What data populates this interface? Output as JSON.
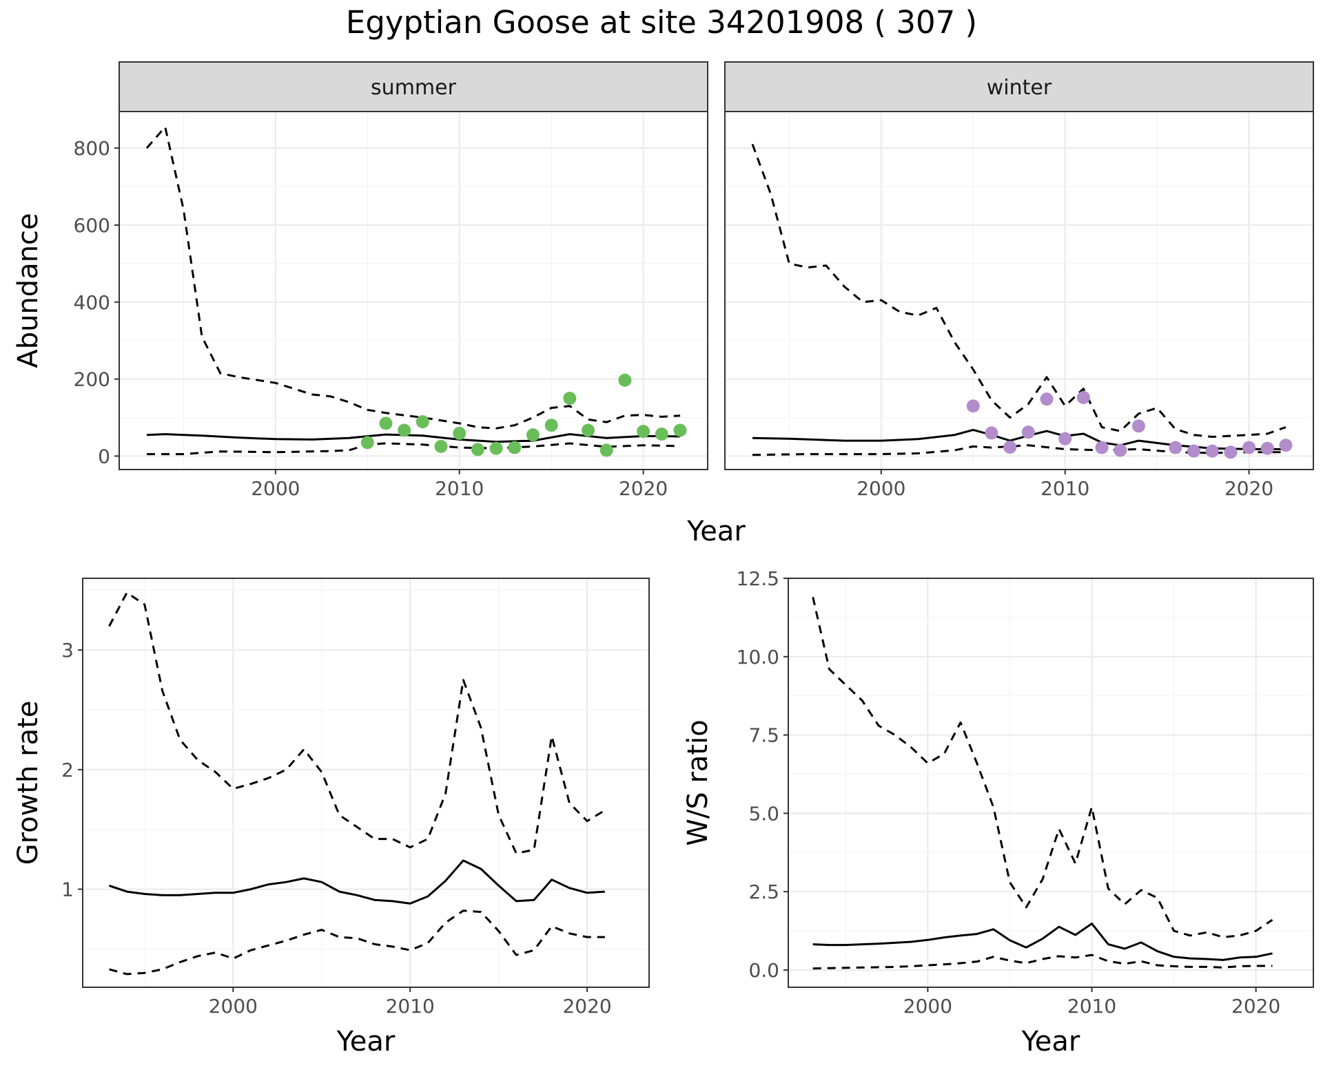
{
  "title": "Egyptian Goose at site 34201908 ( 307 )",
  "colors": {
    "summer_points": "#6ABE5A",
    "winter_points": "#B28CCB",
    "lines": "#000000",
    "strip_fill": "#D9D9D9",
    "grid_major": "#EBEBEB",
    "grid_minor": "#F4F4F4"
  },
  "chart_data": [
    {
      "type": "scatter",
      "panel": "summer",
      "strip_label": "summer",
      "xlabel": "Year",
      "ylabel": "Abundance",
      "xlim": [
        1991.5,
        2023.5
      ],
      "ylim": [
        -35,
        895
      ],
      "x_ticks": [
        2000,
        2010,
        2020
      ],
      "y_ticks": [
        0,
        200,
        400,
        600,
        800
      ],
      "points": {
        "x": [
          2005,
          2006,
          2007,
          2008,
          2009,
          2010,
          2011,
          2012,
          2013,
          2014,
          2015,
          2016,
          2017,
          2018,
          2019,
          2020,
          2021,
          2022
        ],
        "y": [
          35,
          85,
          67,
          89,
          25,
          59,
          17,
          20,
          22,
          55,
          80,
          150,
          67,
          15,
          197,
          64,
          57,
          67
        ]
      },
      "series": [
        {
          "style": "solid",
          "x": [
            1993,
            1994,
            1996,
            1998,
            2000,
            2002,
            2004,
            2006,
            2008,
            2010,
            2012,
            2014,
            2016,
            2018,
            2020,
            2022
          ],
          "y": [
            55,
            57,
            53,
            48,
            44,
            43,
            47,
            56,
            53,
            43,
            37,
            40,
            57,
            47,
            52,
            51
          ]
        },
        {
          "style": "dashed",
          "x": [
            1993,
            1994,
            1995,
            1996,
            1997,
            1998,
            2000,
            2002,
            2003,
            2004,
            2005,
            2006,
            2008,
            2010,
            2011,
            2012,
            2013,
            2014,
            2015,
            2016,
            2017,
            2018,
            2019,
            2020,
            2021,
            2022
          ],
          "y": [
            800,
            855,
            640,
            310,
            215,
            205,
            190,
            160,
            155,
            140,
            120,
            112,
            100,
            85,
            75,
            72,
            80,
            100,
            125,
            130,
            95,
            88,
            105,
            107,
            102,
            105
          ]
        },
        {
          "style": "dashed",
          "x": [
            1993,
            1995,
            1997,
            2000,
            2003,
            2004,
            2005,
            2006,
            2008,
            2010,
            2012,
            2014,
            2016,
            2018,
            2020,
            2022
          ],
          "y": [
            5,
            5,
            12,
            10,
            13,
            15,
            30,
            33,
            30,
            22,
            20,
            25,
            33,
            24,
            28,
            26
          ]
        }
      ]
    },
    {
      "type": "scatter",
      "panel": "winter",
      "strip_label": "winter",
      "xlabel": "Year",
      "xlim": [
        1991.5,
        2023.5
      ],
      "ylim": [
        -35,
        895
      ],
      "x_ticks": [
        2000,
        2010,
        2020
      ],
      "points": {
        "x": [
          2005,
          2006,
          2007,
          2008,
          2009,
          2010,
          2011,
          2012,
          2013,
          2014,
          2016,
          2017,
          2018,
          2019,
          2020,
          2021,
          2022
        ],
        "y": [
          130,
          60,
          23,
          62,
          148,
          45,
          152,
          22,
          15,
          78,
          22,
          13,
          13,
          10,
          22,
          20,
          28
        ]
      },
      "series": [
        {
          "style": "solid",
          "x": [
            1993,
            1995,
            1998,
            2000,
            2002,
            2004,
            2005,
            2006,
            2007,
            2008,
            2009,
            2010,
            2011,
            2012,
            2013,
            2014,
            2016,
            2018,
            2020,
            2022
          ],
          "y": [
            47,
            45,
            40,
            40,
            44,
            55,
            68,
            55,
            40,
            53,
            65,
            52,
            58,
            35,
            28,
            40,
            28,
            20,
            18,
            18
          ]
        },
        {
          "style": "dashed",
          "x": [
            1993,
            1994,
            1995,
            1996,
            1997,
            1998,
            1999,
            2000,
            2001,
            2002,
            2003,
            2004,
            2005,
            2006,
            2007,
            2008,
            2009,
            2010,
            2011,
            2012,
            2013,
            2014,
            2015,
            2016,
            2017,
            2018,
            2020,
            2021,
            2022
          ],
          "y": [
            810,
            680,
            500,
            490,
            495,
            440,
            400,
            405,
            375,
            365,
            385,
            295,
            225,
            145,
            100,
            135,
            205,
            130,
            175,
            75,
            65,
            110,
            125,
            70,
            55,
            50,
            55,
            58,
            75
          ]
        },
        {
          "style": "dashed",
          "x": [
            1993,
            1996,
            2000,
            2002,
            2004,
            2005,
            2006,
            2008,
            2010,
            2012,
            2014,
            2016,
            2018,
            2020,
            2022
          ],
          "y": [
            3,
            5,
            5,
            7,
            15,
            25,
            22,
            28,
            18,
            15,
            18,
            10,
            8,
            10,
            10
          ]
        }
      ]
    },
    {
      "type": "line",
      "panel": "growth",
      "xlabel": "Year",
      "ylabel": "Growth rate",
      "xlim": [
        1991.5,
        2023.5
      ],
      "ylim": [
        0.18,
        3.6
      ],
      "x_ticks": [
        2000,
        2010,
        2020
      ],
      "y_ticks": [
        1,
        2,
        3
      ],
      "series": [
        {
          "style": "solid",
          "x": [
            1993,
            1994,
            1995,
            1996,
            1997,
            1998,
            1999,
            2000,
            2001,
            2002,
            2003,
            2004,
            2005,
            2006,
            2007,
            2008,
            2009,
            2010,
            2011,
            2012,
            2013,
            2014,
            2015,
            2016,
            2017,
            2018,
            2019,
            2020,
            2021
          ],
          "y": [
            1.03,
            0.98,
            0.96,
            0.95,
            0.95,
            0.96,
            0.97,
            0.97,
            1.0,
            1.04,
            1.06,
            1.09,
            1.06,
            0.98,
            0.95,
            0.91,
            0.9,
            0.88,
            0.94,
            1.07,
            1.24,
            1.17,
            1.03,
            0.9,
            0.91,
            1.08,
            1.01,
            0.97,
            0.98
          ]
        },
        {
          "style": "dashed",
          "x": [
            1993,
            1994,
            1995,
            1996,
            1997,
            1998,
            1999,
            2000,
            2001,
            2002,
            2003,
            2004,
            2005,
            2006,
            2007,
            2008,
            2009,
            2010,
            2011,
            2012,
            2013,
            2014,
            2015,
            2016,
            2017,
            2018,
            2019,
            2020,
            2021
          ],
          "y": [
            3.2,
            3.48,
            3.38,
            2.66,
            2.25,
            2.08,
            1.98,
            1.84,
            1.88,
            1.93,
            2.0,
            2.17,
            1.98,
            1.62,
            1.52,
            1.42,
            1.42,
            1.35,
            1.42,
            1.8,
            2.75,
            2.35,
            1.62,
            1.3,
            1.33,
            2.28,
            1.72,
            1.57,
            1.66
          ]
        },
        {
          "style": "dashed",
          "x": [
            1993,
            1994,
            1995,
            1996,
            1997,
            1998,
            1999,
            2000,
            2001,
            2002,
            2003,
            2004,
            2005,
            2006,
            2007,
            2008,
            2009,
            2010,
            2011,
            2012,
            2013,
            2014,
            2015,
            2016,
            2017,
            2018,
            2019,
            2020,
            2021
          ],
          "y": [
            0.33,
            0.29,
            0.3,
            0.33,
            0.39,
            0.44,
            0.47,
            0.42,
            0.49,
            0.53,
            0.57,
            0.62,
            0.66,
            0.6,
            0.59,
            0.54,
            0.52,
            0.49,
            0.55,
            0.72,
            0.82,
            0.81,
            0.65,
            0.45,
            0.49,
            0.69,
            0.63,
            0.6,
            0.6
          ]
        }
      ]
    },
    {
      "type": "line",
      "panel": "ratio",
      "xlabel": "Year",
      "ylabel": "W/S ratio",
      "xlim": [
        1991.5,
        2023.5
      ],
      "ylim": [
        -0.55,
        12.5
      ],
      "x_ticks": [
        2000,
        2010,
        2020
      ],
      "y_ticks": [
        0.0,
        2.5,
        5.0,
        7.5,
        10.0,
        12.5
      ],
      "y_tick_labels": [
        "0.0",
        "2.5",
        "5.0",
        "7.5",
        "10.0",
        "12.5"
      ],
      "series": [
        {
          "style": "solid",
          "x": [
            1993,
            1994,
            1995,
            1996,
            1997,
            1998,
            1999,
            2000,
            2001,
            2002,
            2003,
            2004,
            2005,
            2006,
            2007,
            2008,
            2009,
            2010,
            2011,
            2012,
            2013,
            2014,
            2015,
            2016,
            2017,
            2018,
            2019,
            2020,
            2021
          ],
          "y": [
            0.82,
            0.8,
            0.8,
            0.82,
            0.84,
            0.87,
            0.9,
            0.96,
            1.04,
            1.1,
            1.15,
            1.3,
            0.95,
            0.72,
            1.0,
            1.38,
            1.12,
            1.48,
            0.82,
            0.68,
            0.88,
            0.6,
            0.42,
            0.37,
            0.35,
            0.32,
            0.4,
            0.42,
            0.53
          ]
        },
        {
          "style": "dashed",
          "x": [
            1993,
            1994,
            1995,
            1996,
            1997,
            1998,
            1999,
            2000,
            2001,
            2002,
            2003,
            2004,
            2005,
            2006,
            2007,
            2008,
            2009,
            2010,
            2011,
            2012,
            2013,
            2014,
            2015,
            2016,
            2017,
            2018,
            2019,
            2020,
            2021
          ],
          "y": [
            11.9,
            9.6,
            9.1,
            8.6,
            7.8,
            7.5,
            7.1,
            6.6,
            6.9,
            7.9,
            6.6,
            5.2,
            2.8,
            2.0,
            2.9,
            4.5,
            3.4,
            5.2,
            2.6,
            2.1,
            2.55,
            2.3,
            1.25,
            1.1,
            1.2,
            1.05,
            1.1,
            1.25,
            1.6
          ]
        },
        {
          "style": "dashed",
          "x": [
            1993,
            1994,
            1995,
            1996,
            1997,
            1998,
            1999,
            2000,
            2001,
            2002,
            2003,
            2004,
            2005,
            2006,
            2007,
            2008,
            2009,
            2010,
            2011,
            2012,
            2013,
            2014,
            2015,
            2016,
            2017,
            2018,
            2019,
            2020,
            2021
          ],
          "y": [
            0.05,
            0.06,
            0.07,
            0.08,
            0.09,
            0.1,
            0.12,
            0.15,
            0.18,
            0.22,
            0.27,
            0.42,
            0.3,
            0.22,
            0.35,
            0.44,
            0.4,
            0.48,
            0.28,
            0.2,
            0.28,
            0.15,
            0.12,
            0.1,
            0.1,
            0.08,
            0.12,
            0.13,
            0.13
          ]
        }
      ]
    }
  ]
}
